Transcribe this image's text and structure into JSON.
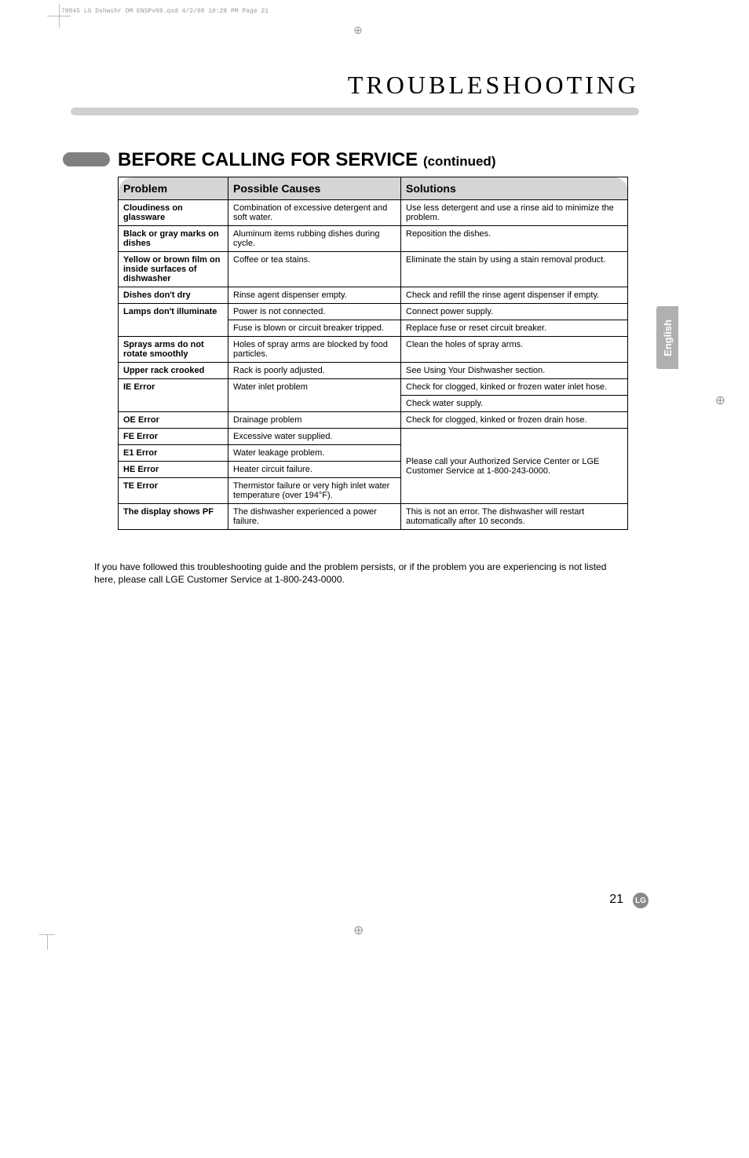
{
  "header_slug": "78045 LG Dshwshr OM ENSPv08.qxd  4/2/08  10:28 PM  Page 21",
  "page_title": "TROUBLESHOOTING",
  "section_title_main": "BEFORE CALLING FOR SERVICE",
  "section_title_cont": "(continued)",
  "side_tab": "English",
  "page_number": "21",
  "lg_logo": "LG",
  "footer_note": "If you have followed this troubleshooting guide and the problem persists, or if the problem you are experiencing is not listed here, please call LGE Customer Service at 1-800-243-0000.",
  "table": {
    "headers": [
      "Problem",
      "Possible Causes",
      "Solutions"
    ],
    "rows": [
      {
        "problem": "Cloudiness on glassware",
        "cause": "Combination of excessive detergent and soft water.",
        "solution": "Use less detergent and use a rinse aid to minimize the problem.",
        "prowspan": 1,
        "srowspan": 1
      },
      {
        "problem": "Black or gray marks on dishes",
        "cause": "Aluminum items rubbing dishes during cycle.",
        "solution": "Reposition the dishes.",
        "prowspan": 1,
        "srowspan": 1
      },
      {
        "problem": "Yellow or brown film on inside surfaces of dishwasher",
        "cause": "Coffee or tea stains.",
        "solution": "Eliminate the stain by using a stain removal product.",
        "prowspan": 1,
        "srowspan": 1
      },
      {
        "problem": "Dishes don't dry",
        "cause": "Rinse agent dispenser empty.",
        "solution": "Check and refill the rinse agent dispenser if empty.",
        "prowspan": 1,
        "srowspan": 1
      },
      {
        "problem": "Lamps don't illuminate",
        "cause": "Power is not connected.",
        "solution": "Connect power supply.",
        "prowspan": 2,
        "srowspan": 1
      },
      {
        "problem": null,
        "cause": "Fuse is blown or circuit breaker tripped.",
        "solution": "Replace fuse or reset circuit breaker.",
        "prowspan": 0,
        "srowspan": 1
      },
      {
        "problem": "Sprays arms do not rotate smoothly",
        "cause": "Holes of spray arms are blocked by food particles.",
        "solution": "Clean the holes of spray arms.",
        "prowspan": 1,
        "srowspan": 1
      },
      {
        "problem": "Upper rack crooked",
        "cause": "Rack is poorly adjusted.",
        "solution": "See Using Your Dishwasher section.",
        "prowspan": 1,
        "srowspan": 1
      },
      {
        "problem": "IE Error",
        "cause": "Water inlet problem",
        "solution": "Check for clogged, kinked or frozen water inlet hose.",
        "prowspan": 2,
        "crowspan": 2,
        "srowspan": 1
      },
      {
        "problem": null,
        "cause": null,
        "solution": "Check water supply.",
        "prowspan": 0,
        "srowspan": 1
      },
      {
        "problem": "OE Error",
        "cause": "Drainage problem",
        "solution": "Check for clogged, kinked or frozen drain hose.",
        "prowspan": 1,
        "srowspan": 1
      },
      {
        "problem": "FE Error",
        "cause": "Excessive water supplied.",
        "solution": null,
        "prowspan": 1,
        "srowspan": 4,
        "merged_solution": "Please call your Authorized Service Center or LGE Customer Service at 1-800-243-0000."
      },
      {
        "problem": "E1 Error",
        "cause": "Water leakage problem.",
        "solution": null,
        "prowspan": 1,
        "srowspan": 0
      },
      {
        "problem": "HE Error",
        "cause": "Heater circuit failure.",
        "solution": null,
        "prowspan": 1,
        "srowspan": 0
      },
      {
        "problem": "TE Error",
        "cause": "Thermistor failure or very high inlet water temperature (over 194°F).",
        "solution": null,
        "prowspan": 1,
        "srowspan": 0
      },
      {
        "problem": "The display shows PF",
        "cause": "The dishwasher experienced a power failure.",
        "solution": "This is not an error. The dishwasher will restart automatically after 10 seconds.",
        "prowspan": 1,
        "srowspan": 1
      }
    ]
  },
  "colors": {
    "header_bg": "#d5d5d5",
    "bar_bg": "#d0d0d0",
    "pill_bg": "#808080",
    "tab_bg": "#b0b0b0"
  }
}
